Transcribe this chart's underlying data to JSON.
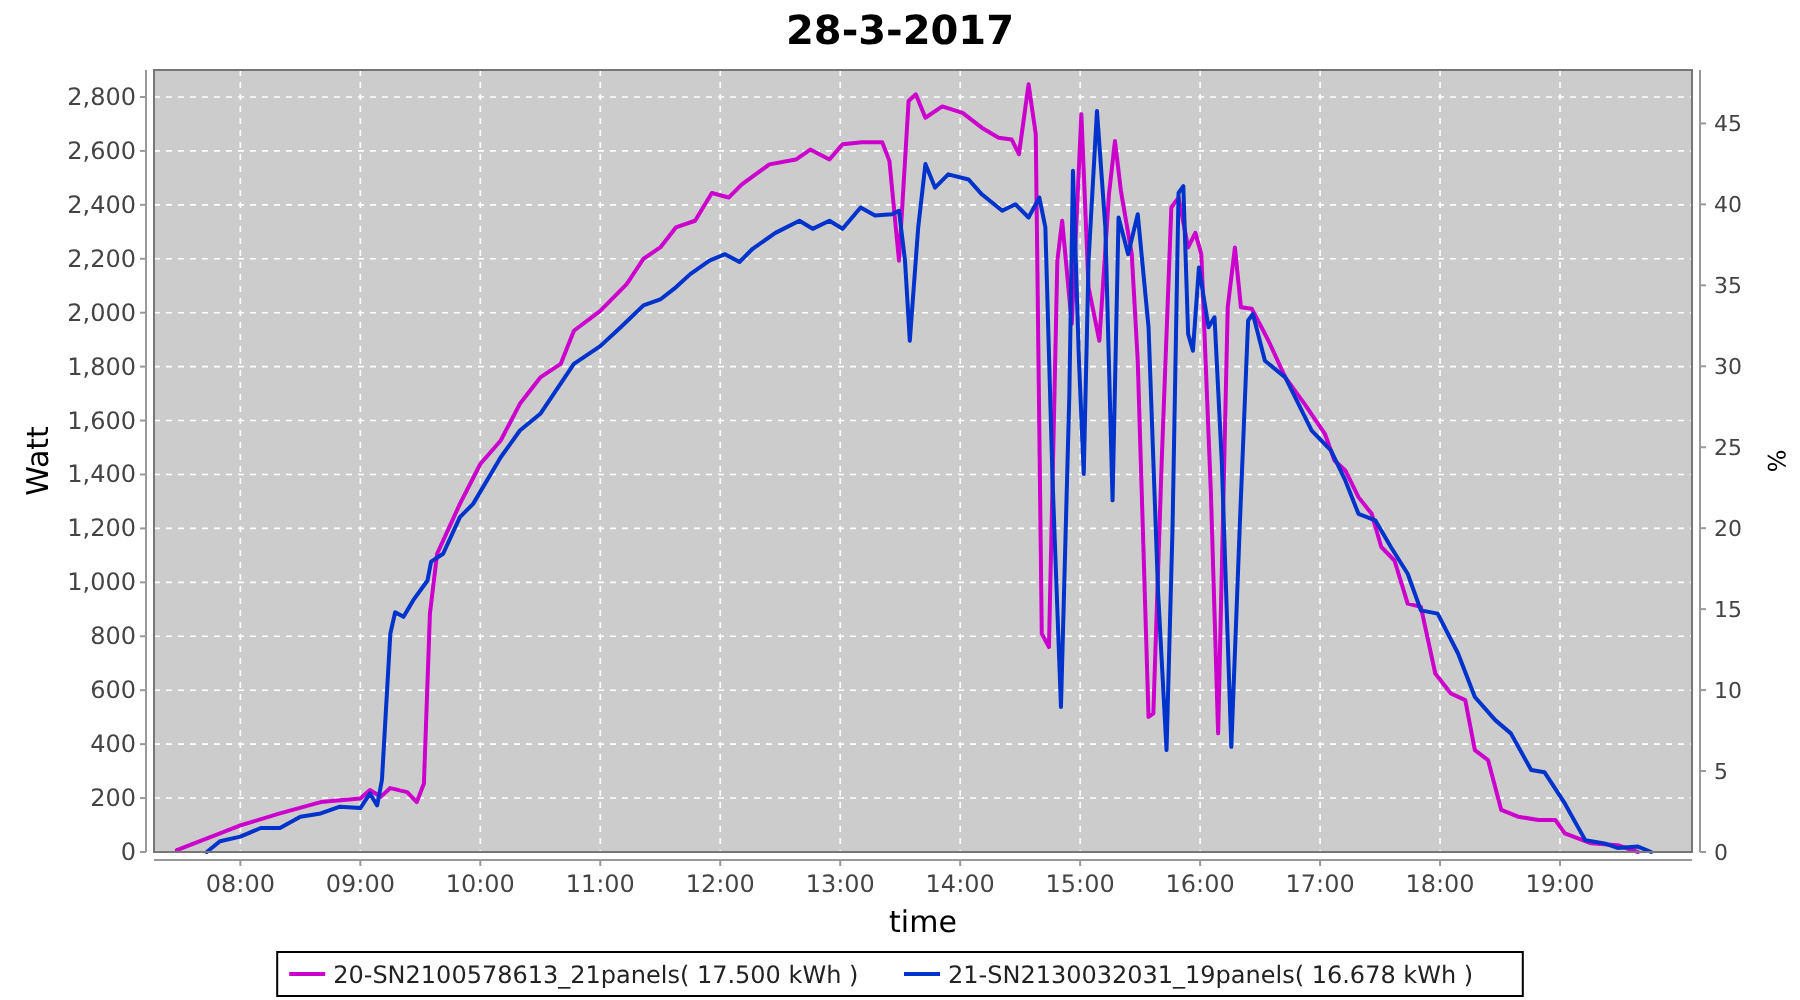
{
  "chart_data": {
    "type": "line",
    "title": "28-3-2017",
    "xlabel": "time",
    "ylabel": "Watt",
    "y2label": "%",
    "xlim": [
      7.28,
      20.1
    ],
    "xticks": [
      {
        "value": 8,
        "label": "08:00"
      },
      {
        "value": 9,
        "label": "09:00"
      },
      {
        "value": 10,
        "label": "10:00"
      },
      {
        "value": 11,
        "label": "11:00"
      },
      {
        "value": 12,
        "label": "12:00"
      },
      {
        "value": 13,
        "label": "13:00"
      },
      {
        "value": 14,
        "label": "14:00"
      },
      {
        "value": 15,
        "label": "15:00"
      },
      {
        "value": 16,
        "label": "16:00"
      },
      {
        "value": 17,
        "label": "17:00"
      },
      {
        "value": 18,
        "label": "18:00"
      },
      {
        "value": 19,
        "label": "19:00"
      }
    ],
    "ylim": [
      0,
      2900
    ],
    "yticks": [
      0,
      200,
      400,
      600,
      800,
      {
        "value": 1000,
        "label": "1,000"
      },
      {
        "value": 1200,
        "label": "1,200"
      },
      {
        "value": 1400,
        "label": "1,400"
      },
      {
        "value": 1600,
        "label": "1,600"
      },
      {
        "value": 1800,
        "label": "1,800"
      },
      {
        "value": 2000,
        "label": "2,000"
      },
      {
        "value": 2200,
        "label": "2,200"
      },
      {
        "value": 2400,
        "label": "2,400"
      },
      {
        "value": 2600,
        "label": "2,600"
      },
      {
        "value": 2800,
        "label": "2,800"
      }
    ],
    "y2lim": [
      0,
      48.3
    ],
    "y2ticks": [
      0,
      5,
      10,
      15,
      20,
      25,
      30,
      35,
      40,
      45
    ],
    "grid": true,
    "legend": "bottom",
    "line_style": "solid",
    "series": [
      {
        "name": "20-SN2100578613_21panels( 17.500 kWh )",
        "color": "#cc00cc",
        "x": [
          7.47,
          7.83,
          8.0,
          8.33,
          8.67,
          9.0,
          9.08,
          9.17,
          9.25,
          9.39,
          9.47,
          9.53,
          9.58,
          9.64,
          9.83,
          10.0,
          10.17,
          10.33,
          10.5,
          10.67,
          10.78,
          11.0,
          11.22,
          11.36,
          11.5,
          11.63,
          11.79,
          11.93,
          12.07,
          12.18,
          12.41,
          12.63,
          12.75,
          12.91,
          13.02,
          13.18,
          13.35,
          13.41,
          13.49,
          13.57,
          13.63,
          13.71,
          13.85,
          14.02,
          14.18,
          14.32,
          14.43,
          14.49,
          14.57,
          14.63,
          14.68,
          14.74,
          14.81,
          14.85,
          14.93,
          15.01,
          15.07,
          15.16,
          15.24,
          15.29,
          15.34,
          15.43,
          15.48,
          15.57,
          15.61,
          15.68,
          15.76,
          15.82,
          15.9,
          15.96,
          16.01,
          16.09,
          16.15,
          16.23,
          16.29,
          16.34,
          16.43,
          16.57,
          16.71,
          16.87,
          17.04,
          17.12,
          17.21,
          17.32,
          17.43,
          17.51,
          17.62,
          17.73,
          17.84,
          17.96,
          18.09,
          18.21,
          18.29,
          18.4,
          18.51,
          18.65,
          18.82,
          18.96,
          19.04,
          19.26,
          19.48,
          19.65
        ],
        "values": [
          7,
          69,
          99,
          143,
          185,
          198,
          230,
          205,
          237,
          222,
          185,
          254,
          884,
          1106,
          1291,
          1439,
          1526,
          1662,
          1760,
          1810,
          1933,
          2007,
          2106,
          2200,
          2242,
          2316,
          2341,
          2444,
          2427,
          2476,
          2550,
          2568,
          2605,
          2568,
          2625,
          2632,
          2632,
          2563,
          2193,
          2785,
          2810,
          2723,
          2765,
          2741,
          2686,
          2649,
          2642,
          2588,
          2847,
          2662,
          810,
          760,
          2193,
          2341,
          1958,
          2736,
          2094,
          1896,
          2439,
          2637,
          2451,
          2217,
          1822,
          501,
          514,
          1452,
          2390,
          2427,
          2242,
          2296,
          2217,
          1328,
          440,
          2020,
          2242,
          2020,
          2015,
          1896,
          1760,
          1662,
          1551,
          1452,
          1415,
          1316,
          1254,
          1131,
          1081,
          921,
          909,
          662,
          588,
          563,
          378,
          341,
          156,
          131,
          119,
          119,
          69,
          32,
          25,
          0
        ]
      },
      {
        "name": "21-SN2130032031_19panels( 16.678 kWh )",
        "color": "#0033cc",
        "x": [
          7.72,
          7.83,
          8.0,
          8.17,
          8.33,
          8.5,
          8.67,
          8.83,
          9.0,
          9.08,
          9.14,
          9.18,
          9.25,
          9.29,
          9.36,
          9.44,
          9.56,
          9.59,
          9.69,
          9.83,
          9.94,
          10.17,
          10.33,
          10.5,
          10.78,
          11.0,
          11.17,
          11.36,
          11.5,
          11.63,
          11.75,
          11.91,
          12.04,
          12.16,
          12.27,
          12.46,
          12.66,
          12.77,
          12.91,
          13.02,
          13.17,
          13.29,
          13.43,
          13.49,
          13.54,
          13.58,
          13.65,
          13.71,
          13.79,
          13.9,
          14.07,
          14.18,
          14.35,
          14.46,
          14.57,
          14.66,
          14.71,
          14.77,
          14.84,
          14.91,
          14.94,
          14.99,
          15.03,
          15.07,
          15.14,
          15.21,
          15.27,
          15.32,
          15.4,
          15.48,
          15.57,
          15.65,
          15.72,
          15.77,
          15.82,
          15.86,
          15.9,
          15.94,
          15.99,
          16.07,
          16.12,
          16.18,
          16.26,
          16.33,
          16.4,
          16.44,
          16.54,
          16.71,
          16.93,
          17.09,
          17.21,
          17.32,
          17.46,
          17.59,
          17.73,
          17.84,
          17.98,
          18.15,
          18.29,
          18.46,
          18.59,
          18.76,
          18.87,
          19.04,
          19.21,
          19.37,
          19.48,
          19.65,
          19.76
        ],
        "values": [
          0,
          40,
          57,
          89,
          89,
          131,
          143,
          168,
          163,
          217,
          173,
          267,
          810,
          889,
          872,
          933,
          1007,
          1077,
          1106,
          1242,
          1291,
          1464,
          1563,
          1625,
          1810,
          1876,
          1946,
          2027,
          2049,
          2094,
          2143,
          2193,
          2217,
          2188,
          2237,
          2296,
          2341,
          2311,
          2341,
          2311,
          2390,
          2360,
          2365,
          2378,
          2193,
          1896,
          2316,
          2551,
          2464,
          2513,
          2494,
          2439,
          2378,
          2402,
          2353,
          2427,
          2316,
          1378,
          538,
          1699,
          2526,
          1822,
          1402,
          2193,
          2748,
          2316,
          1304,
          2353,
          2217,
          2365,
          1946,
          958,
          378,
          1204,
          2444,
          2469,
          1921,
          1859,
          2168,
          1946,
          1983,
          1452,
          390,
          1204,
          1971,
          1995,
          1822,
          1760,
          1563,
          1489,
          1378,
          1254,
          1230,
          1131,
          1032,
          896,
          884,
          736,
          575,
          489,
          440,
          304,
          296,
          180,
          44,
          32,
          15,
          20,
          0
        ]
      }
    ]
  }
}
